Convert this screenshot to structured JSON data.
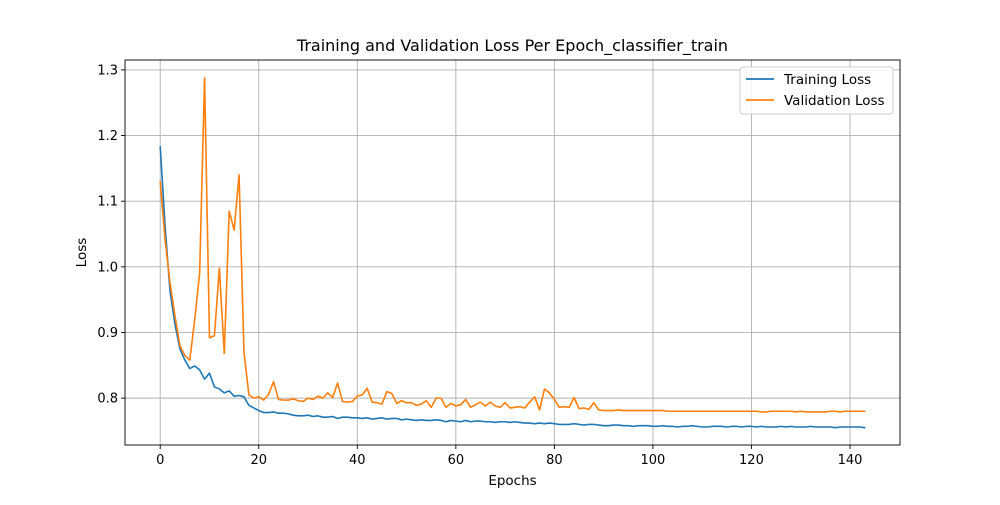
{
  "chart_data": {
    "type": "line",
    "title": "Training and Validation Loss Per Epoch_classifier_train",
    "xlabel": "Epochs",
    "ylabel": "Loss",
    "xlim": [
      -7.15,
      150.15
    ],
    "ylim": [
      0.7286,
      1.3151
    ],
    "xticks": [
      0,
      20,
      40,
      60,
      80,
      100,
      120,
      140
    ],
    "yticks": [
      0.8,
      0.9,
      1.0,
      1.1,
      1.2,
      1.3
    ],
    "ytick_labels": [
      "0.8",
      "0.9",
      "1.0",
      "1.1",
      "1.2",
      "1.3"
    ],
    "grid": true,
    "legend_position": "upper-right",
    "series": [
      {
        "name": "Training Loss",
        "color": "#1f77b4",
        "values": [
          1.183,
          1.06,
          0.962,
          0.912,
          0.875,
          0.858,
          0.845,
          0.849,
          0.843,
          0.829,
          0.838,
          0.817,
          0.814,
          0.808,
          0.811,
          0.803,
          0.804,
          0.802,
          0.789,
          0.785,
          0.781,
          0.778,
          0.778,
          0.779,
          0.777,
          0.777,
          0.776,
          0.774,
          0.773,
          0.773,
          0.774,
          0.772,
          0.773,
          0.771,
          0.771,
          0.772,
          0.769,
          0.771,
          0.771,
          0.77,
          0.77,
          0.769,
          0.77,
          0.768,
          0.769,
          0.77,
          0.768,
          0.769,
          0.769,
          0.767,
          0.768,
          0.767,
          0.766,
          0.767,
          0.766,
          0.766,
          0.767,
          0.766,
          0.764,
          0.766,
          0.765,
          0.764,
          0.766,
          0.764,
          0.765,
          0.765,
          0.764,
          0.764,
          0.763,
          0.764,
          0.764,
          0.763,
          0.764,
          0.763,
          0.762,
          0.762,
          0.761,
          0.762,
          0.761,
          0.762,
          0.761,
          0.76,
          0.76,
          0.76,
          0.761,
          0.76,
          0.759,
          0.76,
          0.76,
          0.759,
          0.758,
          0.758,
          0.759,
          0.759,
          0.758,
          0.758,
          0.757,
          0.758,
          0.758,
          0.758,
          0.757,
          0.757,
          0.758,
          0.757,
          0.757,
          0.756,
          0.757,
          0.757,
          0.758,
          0.757,
          0.756,
          0.756,
          0.757,
          0.757,
          0.757,
          0.756,
          0.757,
          0.757,
          0.756,
          0.757,
          0.757,
          0.756,
          0.757,
          0.756,
          0.756,
          0.756,
          0.757,
          0.756,
          0.757,
          0.756,
          0.756,
          0.756,
          0.757,
          0.756,
          0.756,
          0.756,
          0.756,
          0.755,
          0.756,
          0.756,
          0.756,
          0.756,
          0.756,
          0.755
        ]
      },
      {
        "name": "Validation Loss",
        "color": "#ff7f0e",
        "values": [
          1.13,
          1.04,
          0.975,
          0.925,
          0.88,
          0.865,
          0.858,
          0.92,
          0.99,
          1.288,
          0.892,
          0.895,
          0.998,
          0.868,
          1.085,
          1.056,
          1.14,
          0.87,
          0.805,
          0.8,
          0.802,
          0.797,
          0.806,
          0.825,
          0.798,
          0.797,
          0.797,
          0.799,
          0.796,
          0.795,
          0.8,
          0.798,
          0.803,
          0.8,
          0.808,
          0.801,
          0.823,
          0.795,
          0.794,
          0.795,
          0.803,
          0.805,
          0.815,
          0.794,
          0.793,
          0.791,
          0.81,
          0.807,
          0.792,
          0.796,
          0.793,
          0.793,
          0.789,
          0.791,
          0.796,
          0.786,
          0.8,
          0.8,
          0.786,
          0.792,
          0.788,
          0.79,
          0.798,
          0.786,
          0.79,
          0.794,
          0.788,
          0.794,
          0.788,
          0.786,
          0.793,
          0.785,
          0.786,
          0.787,
          0.785,
          0.794,
          0.802,
          0.782,
          0.814,
          0.808,
          0.798,
          0.786,
          0.787,
          0.786,
          0.801,
          0.784,
          0.785,
          0.783,
          0.793,
          0.782,
          0.781,
          0.781,
          0.781,
          0.782,
          0.781,
          0.781,
          0.781,
          0.781,
          0.781,
          0.781,
          0.781,
          0.781,
          0.781,
          0.78,
          0.78,
          0.78,
          0.78,
          0.78,
          0.78,
          0.78,
          0.78,
          0.78,
          0.78,
          0.78,
          0.78,
          0.78,
          0.78,
          0.78,
          0.78,
          0.78,
          0.78,
          0.78,
          0.779,
          0.779,
          0.78,
          0.78,
          0.78,
          0.78,
          0.78,
          0.779,
          0.78,
          0.779,
          0.779,
          0.779,
          0.779,
          0.779,
          0.78,
          0.78,
          0.779,
          0.78,
          0.78,
          0.78,
          0.78,
          0.78
        ]
      }
    ]
  }
}
